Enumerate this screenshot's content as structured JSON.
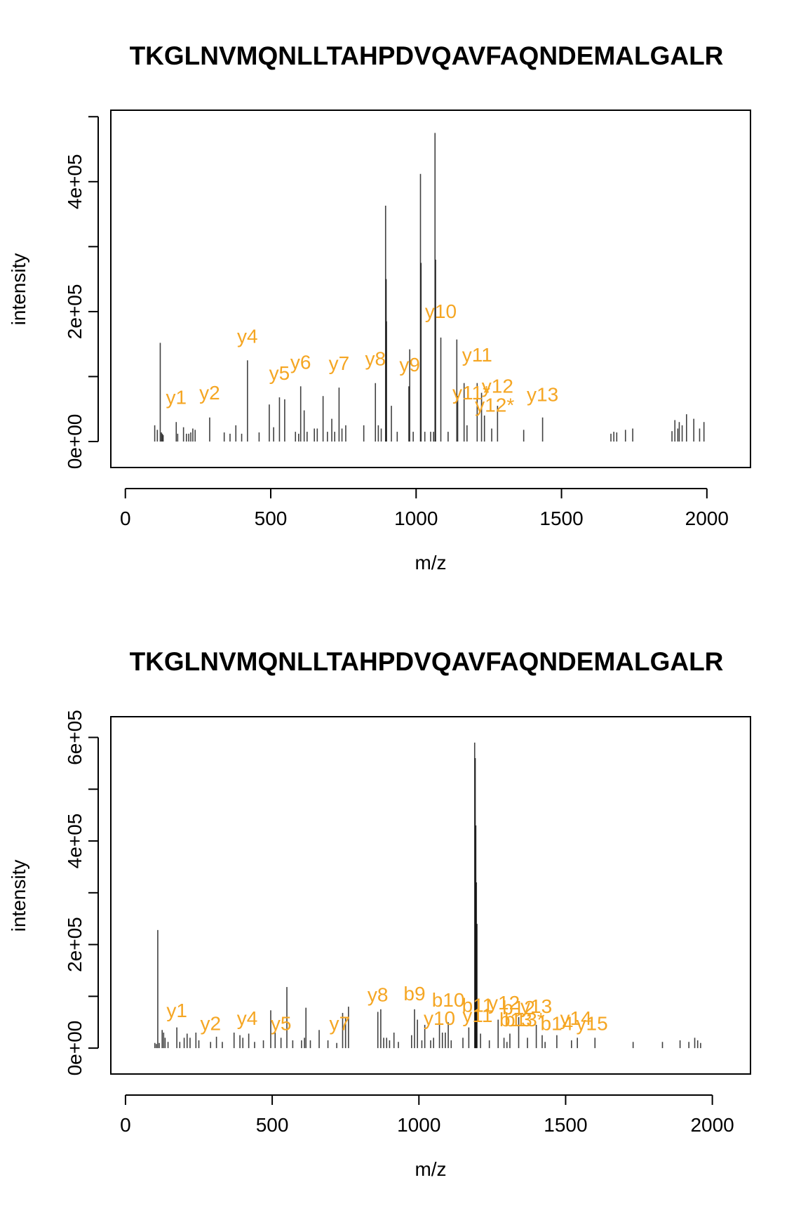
{
  "colors": {
    "annotation": "#f5a623",
    "peak": "#000000",
    "axis": "#000000"
  },
  "chart_data": [
    {
      "type": "bar",
      "title": "TKGLNVMQNLLTAHPDVQAVFAQNDEMALGALR",
      "xlabel": "m/z",
      "ylabel": "intensity",
      "xlim": [
        -50,
        2150
      ],
      "ylim": [
        -40000,
        510000
      ],
      "xticks": [
        0,
        500,
        1000,
        1500,
        2000
      ],
      "xtick_labels": [
        "0",
        "500",
        "1000",
        "1500",
        "2000"
      ],
      "yticks": [
        0,
        200000,
        400000
      ],
      "ytick_labels": [
        "0e+00",
        "2e+05",
        "4e+05"
      ],
      "yticks_unlabeled": [
        100000,
        300000,
        500000
      ],
      "peaks": [
        [
          101,
          25000
        ],
        [
          110,
          18000
        ],
        [
          120,
          152000
        ],
        [
          124,
          14000
        ],
        [
          127,
          12000
        ],
        [
          130,
          10000
        ],
        [
          175,
          30000
        ],
        [
          180,
          12000
        ],
        [
          200,
          22000
        ],
        [
          210,
          12000
        ],
        [
          218,
          12000
        ],
        [
          225,
          14000
        ],
        [
          232,
          20000
        ],
        [
          240,
          18000
        ],
        [
          290,
          37000
        ],
        [
          340,
          14000
        ],
        [
          360,
          12000
        ],
        [
          380,
          25000
        ],
        [
          400,
          12000
        ],
        [
          420,
          125000
        ],
        [
          460,
          14000
        ],
        [
          495,
          57000
        ],
        [
          510,
          22000
        ],
        [
          530,
          68000
        ],
        [
          548,
          65000
        ],
        [
          585,
          15000
        ],
        [
          596,
          12000
        ],
        [
          603,
          85000
        ],
        [
          615,
          48000
        ],
        [
          625,
          15000
        ],
        [
          650,
          20000
        ],
        [
          660,
          20000
        ],
        [
          680,
          70000
        ],
        [
          695,
          15000
        ],
        [
          710,
          35000
        ],
        [
          720,
          15000
        ],
        [
          735,
          83000
        ],
        [
          745,
          20000
        ],
        [
          758,
          25000
        ],
        [
          820,
          25000
        ],
        [
          860,
          90000
        ],
        [
          870,
          25000
        ],
        [
          880,
          20000
        ],
        [
          895,
          363000
        ],
        [
          897,
          250000
        ],
        [
          898,
          185000
        ],
        [
          915,
          55000
        ],
        [
          935,
          15000
        ],
        [
          975,
          85000
        ],
        [
          978,
          142000
        ],
        [
          990,
          15000
        ],
        [
          1015,
          412000
        ],
        [
          1017,
          275000
        ],
        [
          1030,
          15000
        ],
        [
          1050,
          15000
        ],
        [
          1060,
          15000
        ],
        [
          1065,
          475000
        ],
        [
          1067,
          280000
        ],
        [
          1085,
          160000
        ],
        [
          1110,
          15000
        ],
        [
          1140,
          157000
        ],
        [
          1143,
          70000
        ],
        [
          1165,
          90000
        ],
        [
          1175,
          25000
        ],
        [
          1210,
          90000
        ],
        [
          1225,
          75000
        ],
        [
          1235,
          40000
        ],
        [
          1260,
          20000
        ],
        [
          1280,
          55000
        ],
        [
          1370,
          18000
        ],
        [
          1435,
          37000
        ],
        [
          1670,
          12000
        ],
        [
          1680,
          15000
        ],
        [
          1690,
          14000
        ],
        [
          1720,
          18000
        ],
        [
          1745,
          20000
        ],
        [
          1880,
          16000
        ],
        [
          1890,
          33000
        ],
        [
          1900,
          20000
        ],
        [
          1905,
          30000
        ],
        [
          1915,
          25000
        ],
        [
          1930,
          42000
        ],
        [
          1955,
          35000
        ],
        [
          1975,
          20000
        ],
        [
          1990,
          30000
        ]
      ],
      "annotations": [
        {
          "label": "y1",
          "x": 175,
          "y": 58000
        },
        {
          "label": "y2",
          "x": 290,
          "y": 65000
        },
        {
          "label": "y4",
          "x": 420,
          "y": 152000
        },
        {
          "label": "y5",
          "x": 530,
          "y": 95000
        },
        {
          "label": "y6",
          "x": 603,
          "y": 112000
        },
        {
          "label": "y7",
          "x": 735,
          "y": 110000
        },
        {
          "label": "y8",
          "x": 860,
          "y": 117000
        },
        {
          "label": "y9",
          "x": 978,
          "y": 108000
        },
        {
          "label": "y10",
          "x": 1085,
          "y": 190000
        },
        {
          "label": "y11",
          "x": 1210,
          "y": 123000
        },
        {
          "label": "y11*",
          "x": 1190,
          "y": 65000
        },
        {
          "label": "y12",
          "x": 1280,
          "y": 75000
        },
        {
          "label": "y12*",
          "x": 1270,
          "y": 46000
        },
        {
          "label": "y13",
          "x": 1435,
          "y": 62000
        }
      ]
    },
    {
      "type": "bar",
      "title": "TKGLNVMQNLLTAHPDVQAVFAQNDEMALGALR",
      "xlabel": "m/z",
      "ylabel": "intensity",
      "xlim": [
        -50,
        2130
      ],
      "ylim": [
        -50000,
        640000
      ],
      "xticks": [
        0,
        500,
        1000,
        1500,
        2000
      ],
      "xtick_labels": [
        "0",
        "500",
        "1000",
        "1500",
        "2000"
      ],
      "yticks": [
        0,
        200000,
        400000,
        600000
      ],
      "ytick_labels": [
        "0e+00",
        "2e+05",
        "4e+05",
        "6e+05"
      ],
      "yticks_unlabeled": [
        100000,
        300000,
        500000
      ],
      "peaks": [
        [
          100,
          10000
        ],
        [
          105,
          8000
        ],
        [
          110,
          228000
        ],
        [
          115,
          10000
        ],
        [
          125,
          35000
        ],
        [
          130,
          30000
        ],
        [
          135,
          20000
        ],
        [
          145,
          12000
        ],
        [
          175,
          40000
        ],
        [
          185,
          12000
        ],
        [
          200,
          20000
        ],
        [
          210,
          28000
        ],
        [
          220,
          20000
        ],
        [
          240,
          30000
        ],
        [
          250,
          15000
        ],
        [
          290,
          12000
        ],
        [
          310,
          22000
        ],
        [
          330,
          12000
        ],
        [
          370,
          30000
        ],
        [
          390,
          25000
        ],
        [
          400,
          20000
        ],
        [
          420,
          28000
        ],
        [
          440,
          12000
        ],
        [
          470,
          15000
        ],
        [
          495,
          73000
        ],
        [
          510,
          30000
        ],
        [
          530,
          20000
        ],
        [
          550,
          118000
        ],
        [
          570,
          15000
        ],
        [
          600,
          15000
        ],
        [
          610,
          20000
        ],
        [
          615,
          78000
        ],
        [
          630,
          15000
        ],
        [
          660,
          35000
        ],
        [
          690,
          15000
        ],
        [
          720,
          10000
        ],
        [
          740,
          68000
        ],
        [
          750,
          60000
        ],
        [
          760,
          80000
        ],
        [
          860,
          70000
        ],
        [
          870,
          75000
        ],
        [
          880,
          20000
        ],
        [
          890,
          20000
        ],
        [
          900,
          15000
        ],
        [
          915,
          30000
        ],
        [
          930,
          12000
        ],
        [
          975,
          25000
        ],
        [
          985,
          75000
        ],
        [
          995,
          55000
        ],
        [
          1010,
          15000
        ],
        [
          1020,
          45000
        ],
        [
          1040,
          15000
        ],
        [
          1050,
          20000
        ],
        [
          1070,
          60000
        ],
        [
          1080,
          30000
        ],
        [
          1090,
          30000
        ],
        [
          1100,
          50000
        ],
        [
          1110,
          15000
        ],
        [
          1150,
          20000
        ],
        [
          1170,
          40000
        ],
        [
          1190,
          590000
        ],
        [
          1192,
          560000
        ],
        [
          1194,
          430000
        ],
        [
          1196,
          320000
        ],
        [
          1198,
          240000
        ],
        [
          1210,
          28000
        ],
        [
          1240,
          15000
        ],
        [
          1270,
          55000
        ],
        [
          1290,
          20000
        ],
        [
          1300,
          12000
        ],
        [
          1310,
          28000
        ],
        [
          1340,
          60000
        ],
        [
          1370,
          20000
        ],
        [
          1400,
          45000
        ],
        [
          1420,
          25000
        ],
        [
          1430,
          12000
        ],
        [
          1470,
          25000
        ],
        [
          1520,
          15000
        ],
        [
          1540,
          20000
        ],
        [
          1600,
          20000
        ],
        [
          1730,
          12000
        ],
        [
          1830,
          12000
        ],
        [
          1890,
          15000
        ],
        [
          1920,
          12000
        ],
        [
          1940,
          20000
        ],
        [
          1950,
          15000
        ],
        [
          1960,
          10000
        ]
      ],
      "annotations": [
        {
          "label": "y1",
          "x": 175,
          "y": 60000
        },
        {
          "label": "y2",
          "x": 290,
          "y": 35000
        },
        {
          "label": "y4",
          "x": 415,
          "y": 45000
        },
        {
          "label": "y5",
          "x": 530,
          "y": 35000
        },
        {
          "label": "y7",
          "x": 730,
          "y": 35000
        },
        {
          "label": "y8",
          "x": 860,
          "y": 90000
        },
        {
          "label": "b9",
          "x": 985,
          "y": 92000
        },
        {
          "label": "b10",
          "x": 1100,
          "y": 80000
        },
        {
          "label": "y10",
          "x": 1070,
          "y": 45000
        },
        {
          "label": "b11",
          "x": 1200,
          "y": 70000
        },
        {
          "label": "y11",
          "x": 1200,
          "y": 50000
        },
        {
          "label": "y12",
          "x": 1290,
          "y": 75000
        },
        {
          "label": "b12",
          "x": 1340,
          "y": 65000
        },
        {
          "label": "y13",
          "x": 1400,
          "y": 68000
        },
        {
          "label": "b13",
          "x": 1330,
          "y": 42000
        },
        {
          "label": "b13*",
          "x": 1360,
          "y": 42000
        },
        {
          "label": "b14",
          "x": 1470,
          "y": 35000
        },
        {
          "label": "y14",
          "x": 1535,
          "y": 45000
        },
        {
          "label": "y15",
          "x": 1590,
          "y": 35000
        }
      ]
    }
  ]
}
